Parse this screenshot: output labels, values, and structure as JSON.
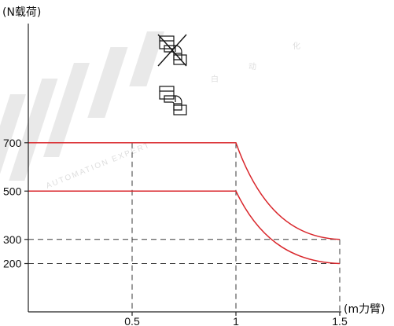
{
  "chart_data": {
    "type": "line",
    "ylabel": "(N载荷)",
    "xlabel": "(m力臂)",
    "xlim": [
      0,
      1.5
    ],
    "ylim": [
      0,
      850
    ],
    "x_ticks": [
      {
        "value": 0.5,
        "label": "0.5"
      },
      {
        "value": 1,
        "label": "1"
      },
      {
        "value": 1.5,
        "label": "1.5"
      }
    ],
    "y_ticks": [
      {
        "value": 200,
        "label": "200"
      },
      {
        "value": 300,
        "label": "300"
      },
      {
        "value": 500,
        "label": "500"
      },
      {
        "value": 700,
        "label": "700"
      }
    ],
    "grid": "dashed",
    "series": [
      {
        "color": "#d9262b",
        "curve": "decay",
        "points": [
          [
            0,
            700
          ],
          [
            1,
            700
          ],
          [
            1.5,
            300
          ]
        ]
      },
      {
        "color": "#d9262b",
        "curve": "decay",
        "points": [
          [
            0,
            500
          ],
          [
            1,
            500
          ],
          [
            1.5,
            200
          ]
        ]
      }
    ],
    "legend_icons": [
      {
        "icon": "mounting-crossed-out-icon",
        "pairs_with": 700
      },
      {
        "icon": "mounting-icon",
        "pairs_with": 500
      }
    ],
    "guides": {
      "vertical": [
        0.5,
        1,
        1.5
      ],
      "horizontal_from_x": [
        {
          "y": 300,
          "x_from": 0,
          "x_to": 1.5
        },
        {
          "y": 200,
          "x_from": 0,
          "x_to": 1.5
        }
      ]
    }
  },
  "colors": {
    "axis": "#222222",
    "series": "#d9262b",
    "grid": "#3a3a3a",
    "watermark": "#d6d6d6"
  },
  "watermark": {
    "text": "AUTOMATION EXPERT",
    "glyphs": [
      "白",
      "动",
      "化"
    ]
  }
}
